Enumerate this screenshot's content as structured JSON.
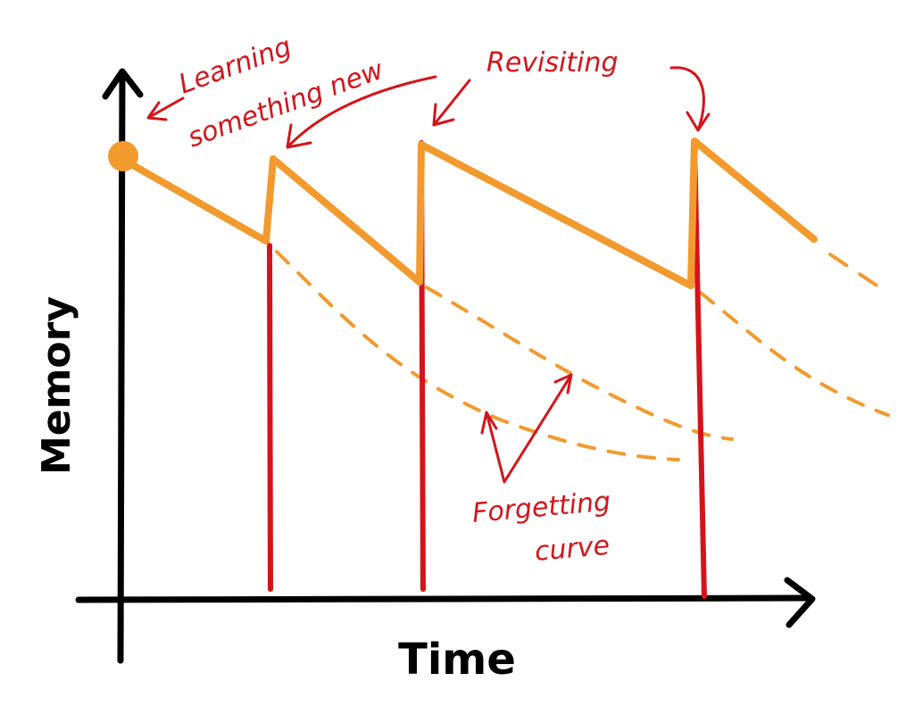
{
  "axes": {
    "y_label": "Memory",
    "x_label": "Time"
  },
  "annotations": [
    {
      "lines": [
        "Learning",
        "something new"
      ]
    },
    {
      "lines": [
        "Revisiting"
      ]
    },
    {
      "lines": [
        "Forgetting",
        "curve"
      ]
    }
  ]
}
